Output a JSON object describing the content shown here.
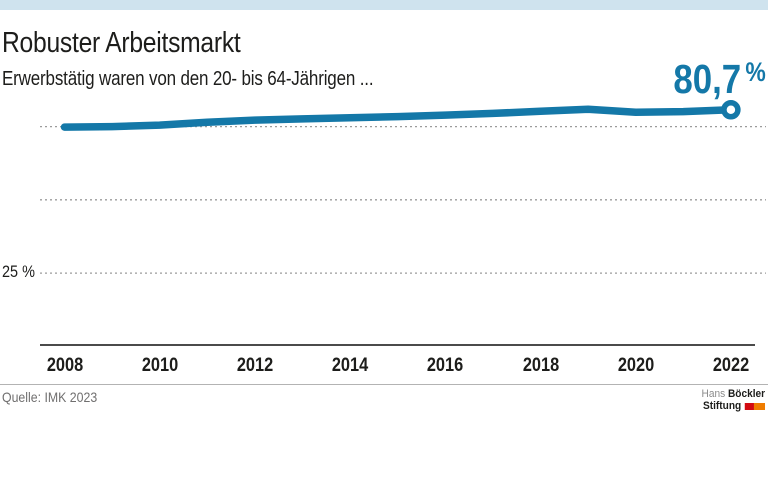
{
  "colors": {
    "accent_blue": "#1478a8",
    "topbar_blue": "#cfe3ee",
    "grid_gray": "#9b9b9b",
    "axis_gray": "#4b4b4b",
    "text_dark": "#1d1d1b",
    "text_gray": "#706f6f",
    "logo_red": "#d20a11",
    "logo_orange": "#ef7c00"
  },
  "header": {
    "title": "Robuster Arbeitsmarkt",
    "subtitle": "Erwerbstätig waren von den 20- bis 64-Jährigen ..."
  },
  "chart_data": {
    "type": "line",
    "title": "Robuster Arbeitsmarkt",
    "subtitle": "Erwerbstätig waren von den 20- bis 64-Jährigen ...",
    "unit": "%",
    "x": [
      2008,
      2009,
      2010,
      2011,
      2012,
      2013,
      2014,
      2015,
      2016,
      2017,
      2018,
      2019,
      2020,
      2021,
      2022
    ],
    "values": [
      74.8,
      75.0,
      75.5,
      76.5,
      77.2,
      77.6,
      78.0,
      78.4,
      78.9,
      79.5,
      80.2,
      80.9,
      79.9,
      80.1,
      80.7
    ],
    "end_label": {
      "number": "80,7",
      "unit": "%"
    },
    "x_ticks": [
      "2008",
      "2010",
      "2012",
      "2014",
      "2016",
      "2018",
      "2020",
      "2022"
    ],
    "y_gridlines_percent": [
      25,
      50,
      75
    ],
    "y_tick_labels": [
      "25 %"
    ],
    "ylim": [
      0,
      85
    ],
    "grid": "dotted-horizontal",
    "legend": "none",
    "line_color": "#1478a8",
    "end_marker": "open-circle"
  },
  "footer": {
    "source": "Quelle: IMK 2023",
    "logo": {
      "name_regular": "Hans ",
      "name_bold": "Böckler",
      "line2_bold": "Stiftung"
    }
  }
}
